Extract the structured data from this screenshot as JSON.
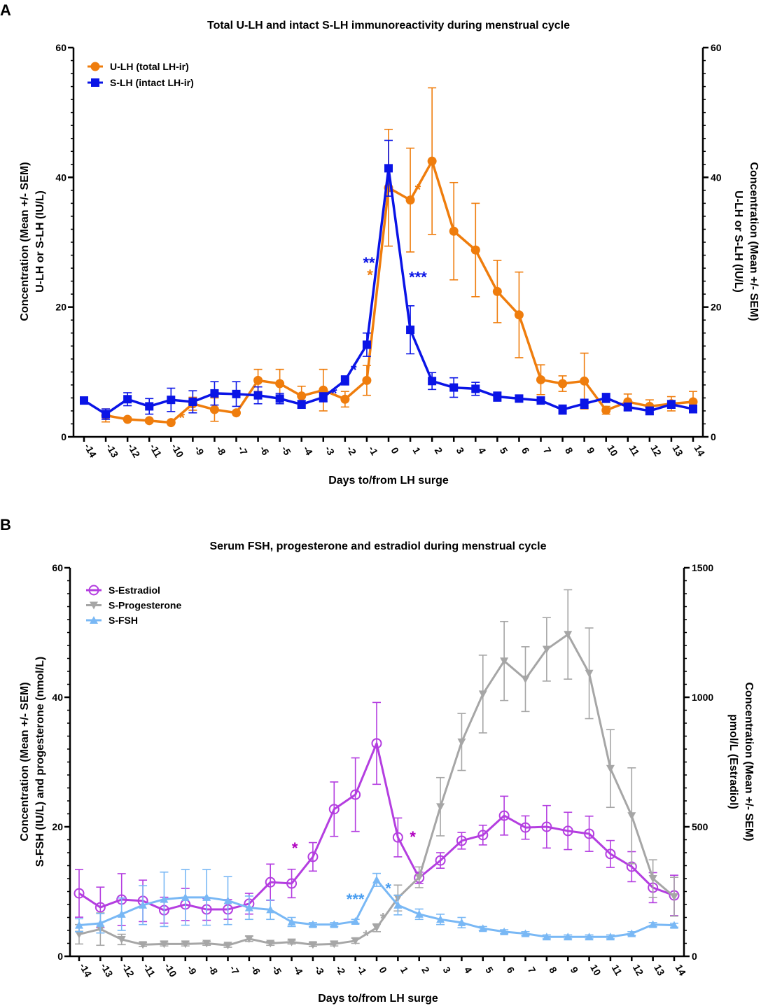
{
  "chart_data": [
    {
      "panel_label": "A",
      "type": "line",
      "title": "Total U-LH and intact S-LH immunoreactivity during menstrual cycle",
      "xlabel": "Days to/from LH surge",
      "ylabel": [
        "Concentration (Mean +/- SEM)",
        "U-LH or S-LH (IU/L)"
      ],
      "ylabel_right": [
        "Concentration (Mean +/- SEM)",
        "U-LH or S-LH (IU/L)"
      ],
      "x": [
        -14,
        -13,
        -12,
        -11,
        -10,
        -9,
        -8,
        -7,
        -6,
        -5,
        -4,
        -3,
        -2,
        -1,
        0,
        1,
        2,
        3,
        4,
        5,
        6,
        7,
        8,
        9,
        10,
        11,
        12,
        13,
        14
      ],
      "xlim": [
        -14,
        14
      ],
      "ylim": [
        0,
        60
      ],
      "yticks": [
        0,
        20,
        40,
        60
      ],
      "ylim_right": [
        0,
        60
      ],
      "yticks_right": [
        0,
        20,
        40,
        60
      ],
      "legend_position": "top-left",
      "series": [
        {
          "name": "U-LH (total  LH-ir)",
          "color": "#ef7d0d",
          "marker": "circle",
          "axis": "left",
          "x": [
            -13,
            -12,
            -11,
            -10,
            -9,
            -8,
            -7,
            -6,
            -5,
            -4,
            -3,
            -2,
            -1,
            0,
            1,
            2,
            3,
            4,
            5,
            6,
            7,
            8,
            9,
            10,
            11,
            12,
            13,
            14
          ],
          "values": [
            3.3,
            2.7,
            2.5,
            2.2,
            5.1,
            4.2,
            3.7,
            8.7,
            8.2,
            6.3,
            7.2,
            5.8,
            8.7,
            38.4,
            36.5,
            42.5,
            31.7,
            28.8,
            22.4,
            18.8,
            8.8,
            8.2,
            8.6,
            4.1,
            5.4,
            4.7,
            5.1,
            5.4
          ],
          "sem": [
            1.0,
            0,
            0,
            0,
            1.0,
            1.8,
            0,
            1.7,
            2.2,
            1.5,
            3.2,
            1.2,
            2.3,
            9.0,
            8.0,
            11.3,
            7.5,
            7.2,
            4.8,
            6.6,
            2.3,
            1.2,
            4.3,
            0.6,
            1.2,
            1.0,
            1.1,
            1.6
          ]
        },
        {
          "name": "S-LH (intact LH-ir)",
          "color": "#0a14e6",
          "marker": "square",
          "axis": "left",
          "x": [
            -14,
            -13,
            -12,
            -11,
            -10,
            -9,
            -8,
            -7,
            -6,
            -5,
            -4,
            -3,
            -2,
            -1,
            0,
            1,
            2,
            3,
            4,
            5,
            6,
            7,
            8,
            9,
            10,
            11,
            12,
            13,
            14
          ],
          "values": [
            5.6,
            3.5,
            5.8,
            4.7,
            5.7,
            5.4,
            6.7,
            6.6,
            6.4,
            5.9,
            5.0,
            6.1,
            8.7,
            14.2,
            41.4,
            16.5,
            8.6,
            7.6,
            7.4,
            6.2,
            5.9,
            5.6,
            4.2,
            5.1,
            6.0,
            4.6,
            4.0,
            5.0,
            4.3
          ],
          "sem": [
            0,
            0.8,
            1.0,
            1.2,
            1.8,
            1.7,
            1.8,
            1.9,
            1.3,
            0.8,
            0.6,
            0.7,
            0.7,
            1.8,
            4.3,
            3.7,
            1.3,
            1.5,
            1.0,
            0.7,
            0.4,
            0.5,
            0.7,
            0.7,
            0.7,
            0.6,
            0.6,
            0.6,
            0.6
          ]
        }
      ],
      "annotations": [
        {
          "text": "*",
          "x": -9.5,
          "y": 3.4,
          "color": "#ef7d0d"
        },
        {
          "text": "*",
          "x": -2.5,
          "y": 7.2,
          "color": "#0a14e6"
        },
        {
          "text": "*",
          "x": -1.6,
          "y": 10.8,
          "color": "#0a14e6"
        },
        {
          "text": "**",
          "x": -0.9,
          "y": 27.3,
          "color": "#0a14e6"
        },
        {
          "text": "*",
          "x": -0.85,
          "y": 25.4,
          "color": "#ef7d0d"
        },
        {
          "text": "***",
          "x": 1.35,
          "y": 25.1,
          "color": "#0a14e6"
        },
        {
          "text": "*",
          "x": 1.35,
          "y": 38.6,
          "color": "#ef7d0d"
        }
      ]
    },
    {
      "panel_label": "B",
      "type": "line",
      "title": "Serum FSH, progesterone and estradiol during menstrual cycle",
      "xlabel": "Days to/from LH surge",
      "ylabel": [
        "Concentration (Mean +/- SEM)",
        "S-FSH (IU/L) and progesterone (nmol/L)"
      ],
      "ylabel_right": [
        "Concentration (Mean +/- SEM)",
        "pmol/L (Estradiol)"
      ],
      "x": [
        -14,
        -13,
        -12,
        -11,
        -10,
        -9,
        -8,
        -7,
        -6,
        -5,
        -4,
        -3,
        -2,
        -1,
        0,
        1,
        2,
        3,
        4,
        5,
        6,
        7,
        8,
        9,
        10,
        11,
        12,
        13,
        14
      ],
      "xlim": [
        -14,
        14
      ],
      "ylim": [
        0,
        60
      ],
      "yticks": [
        0,
        20,
        40,
        60
      ],
      "ylim_right": [
        0,
        1500
      ],
      "yticks_right": [
        0,
        500,
        1000,
        1500
      ],
      "legend_position": "top-left",
      "series": [
        {
          "name": "S-Estradiol",
          "color": "#b43ee0",
          "marker": "open-circle",
          "axis": "right",
          "x": [
            -14,
            -13,
            -12,
            -11,
            -10,
            -9,
            -8,
            -7,
            -6,
            -5,
            -4,
            -3,
            -2,
            -1,
            0,
            1,
            2,
            3,
            4,
            5,
            6,
            7,
            8,
            9,
            10,
            11,
            12,
            13,
            14
          ],
          "values": [
            243,
            189,
            219,
            214,
            178,
            200,
            181,
            181,
            203,
            286,
            281,
            384,
            568,
            624,
            822,
            459,
            303,
            370,
            446,
            468,
            543,
            497,
            500,
            484,
            473,
            395,
            346,
            265,
            235
          ],
          "sem": [
            92,
            78,
            100,
            80,
            50,
            62,
            42,
            38,
            40,
            70,
            55,
            55,
            105,
            142,
            158,
            75,
            22,
            30,
            32,
            38,
            75,
            45,
            82,
            72,
            68,
            52,
            58,
            58,
            78
          ]
        },
        {
          "name": "S-Progesterone",
          "color": "#a6a6a6",
          "marker": "triangle-down",
          "axis": "left",
          "x": [
            -14,
            -13,
            -12,
            -11,
            -10,
            -9,
            -8,
            -7,
            -6,
            -5,
            -4,
            -3,
            -2,
            -1,
            0,
            1,
            2,
            3,
            4,
            5,
            6,
            7,
            8,
            9,
            10,
            11,
            12,
            13,
            14
          ],
          "values": [
            3.4,
            4.2,
            2.6,
            1.8,
            1.9,
            1.9,
            2.0,
            1.7,
            2.7,
            2.0,
            2.2,
            1.8,
            1.9,
            2.4,
            4.4,
            9.0,
            12.2,
            23.1,
            33.1,
            40.5,
            45.6,
            42.8,
            47.4,
            49.7,
            43.7,
            29.0,
            21.7,
            12.0,
            9.2
          ],
          "sem": [
            1.5,
            2.5,
            0.8,
            0.3,
            0.3,
            0.3,
            0.3,
            0.3,
            0.4,
            0.3,
            0.3,
            0.3,
            0.3,
            0.4,
            0.6,
            2.0,
            1.6,
            4.5,
            4.4,
            6.0,
            6.1,
            5.0,
            4.9,
            6.9,
            7.0,
            6.0,
            7.4,
            2.9,
            3.0
          ]
        },
        {
          "name": "S-FSH",
          "color": "#79b8f5",
          "marker": "triangle-up",
          "axis": "left",
          "x": [
            -14,
            -13,
            -12,
            -11,
            -10,
            -9,
            -8,
            -7,
            -6,
            -5,
            -4,
            -3,
            -2,
            -1,
            0,
            1,
            2,
            3,
            4,
            5,
            6,
            7,
            8,
            9,
            10,
            11,
            12,
            13,
            14
          ],
          "values": [
            4.8,
            5.1,
            6.5,
            7.9,
            8.8,
            9.1,
            9.1,
            8.6,
            7.5,
            7.2,
            5.3,
            4.9,
            4.9,
            5.4,
            11.8,
            7.9,
            6.5,
            5.7,
            5.2,
            4.3,
            3.8,
            3.5,
            3.0,
            3.0,
            3.0,
            3.0,
            3.5,
            4.9,
            4.8
          ],
          "sem": [
            1.0,
            1.5,
            2.5,
            3.0,
            4.2,
            4.3,
            4.3,
            3.7,
            1.8,
            1.5,
            0.7,
            0.3,
            0.3,
            0.3,
            1.0,
            1.5,
            0.8,
            0.8,
            0.8,
            0.3,
            0.3,
            0.3,
            0.3,
            0.3,
            0.3,
            0.3,
            0.3,
            0.3,
            0.3
          ]
        }
      ],
      "annotations": [
        {
          "text": "*",
          "x": -3.85,
          "y": 17.2,
          "color": "#b000c0"
        },
        {
          "text": "*",
          "x": 1.7,
          "y": 18.9,
          "color": "#b000c0"
        },
        {
          "text": "***",
          "x": -1.0,
          "y": 9.3,
          "color": "#4a9ef0"
        },
        {
          "text": "*",
          "x": 0.55,
          "y": 11.0,
          "color": "#4a9ef0"
        },
        {
          "text": "*",
          "x": -0.5,
          "y": 3.6,
          "color": "#a6a6a6"
        },
        {
          "text": "*",
          "x": 0.3,
          "y": 6.3,
          "color": "#a6a6a6"
        }
      ]
    }
  ]
}
